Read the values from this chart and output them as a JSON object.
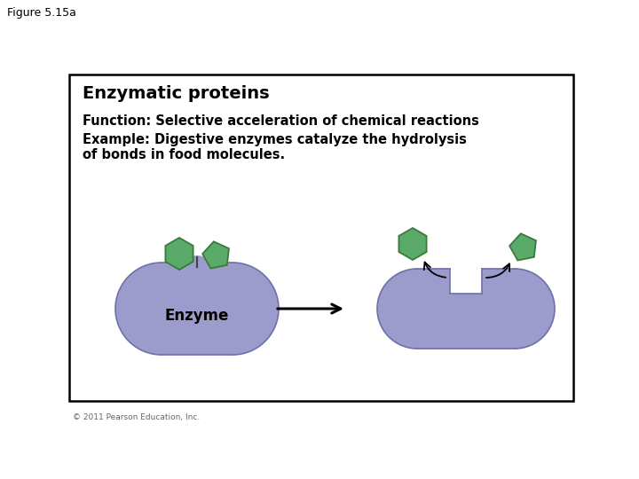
{
  "figure_label": "Figure 5.15a",
  "title": "Enzymatic proteins",
  "function_text": "Function: Selective acceleration of chemical reactions",
  "example_text": "Example: Digestive enzymes catalyze the hydrolysis\nof bonds in food molecules.",
  "enzyme_label": "Enzyme",
  "copyright_text": "© 2011 Pearson Education, Inc.",
  "bg_color": "#ffffff",
  "box_color": "#000000",
  "enzyme_body_color": "#9b9bcc",
  "enzyme_edge_color": "#7070aa",
  "substrate_color": "#5aaa6a",
  "substrate_edge_color": "#3a7a3a",
  "title_fontsize": 14,
  "text_fontsize": 10.5,
  "label_fontsize": 12,
  "fig_label_fontsize": 9
}
